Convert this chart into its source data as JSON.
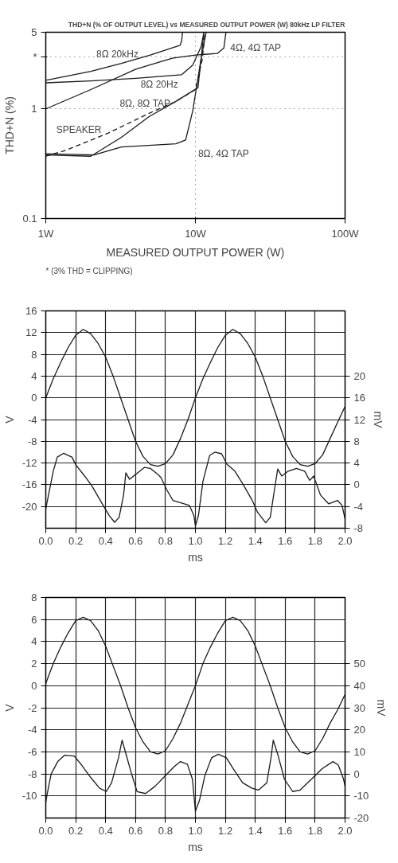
{
  "chart_data": [
    {
      "type": "line",
      "title": "THD+N (% OF OUTPUT LEVEL) vs MEASURED OUTPUT POWER (W) 80kHz LP FILTER",
      "xlabel": "MEASURED OUTPUT POWER (W)",
      "ylabel": "THD+N (%)",
      "log": "xy",
      "grid": true,
      "xlim": [
        1,
        100
      ],
      "ylim": [
        0.1,
        5
      ],
      "xticks": [
        {
          "value": 1,
          "label": "1W"
        },
        {
          "value": 10,
          "label": "10W"
        },
        {
          "value": 100,
          "label": "100W"
        }
      ],
      "yticks": [
        0.1,
        1,
        {
          "value": 3,
          "label": "*"
        },
        5
      ],
      "annotations": [
        "* (3% THD = CLIPPING)"
      ],
      "series": [
        {
          "name": "8Ω 20kHz",
          "color": "#1a1a1a",
          "x": [
            1,
            2,
            3.2,
            5,
            7.9,
            8.1,
            8.2
          ],
          "values": [
            1.82,
            2.2,
            2.6,
            3.1,
            3.8,
            4.2,
            5
          ]
        },
        {
          "name": "8Ω 20Hz",
          "color": "#1a1a1a",
          "x": [
            1,
            2,
            4,
            8.1,
            9.6,
            10.9,
            11.4
          ],
          "values": [
            1.73,
            1.8,
            1.9,
            2.05,
            2.51,
            3.68,
            5
          ]
        },
        {
          "name": "4Ω, 4Ω TAP",
          "color": "#1a1a1a",
          "x": [
            1,
            2,
            4,
            7,
            10,
            14,
            15.5,
            16
          ],
          "values": [
            1.0,
            1.5,
            2.3,
            2.9,
            3.1,
            3.2,
            3.6,
            5
          ]
        },
        {
          "name": "8Ω, 8Ω TAP",
          "color": "#1a1a1a",
          "x": [
            1,
            2,
            3.2,
            4.9,
            7.4,
            10.4,
            11.4
          ],
          "values": [
            0.38,
            0.37,
            0.55,
            0.85,
            1.17,
            1.56,
            5
          ]
        },
        {
          "name": "SPEAKER",
          "color": "#1a1a1a",
          "line_style": "dashed",
          "x": [
            1,
            1.37,
            2.6,
            4.9,
            7.4,
            10,
            11.1,
            11.6
          ],
          "values": [
            0.37,
            0.42,
            0.6,
            0.91,
            1.17,
            1.5,
            2.8,
            5
          ]
        },
        {
          "name": "8Ω, 4Ω TAP",
          "color": "#1a1a1a",
          "x": [
            1,
            2.1,
            3.2,
            7.4,
            8.6,
            9.6,
            10.9,
            11.8
          ],
          "values": [
            0.39,
            0.38,
            0.45,
            0.48,
            0.52,
            0.96,
            2.85,
            5
          ]
        }
      ]
    },
    {
      "type": "line",
      "xlabel": "ms",
      "ylabel": "V",
      "y2label": "mV",
      "grid": true,
      "xlim": [
        0,
        2
      ],
      "ylim": [
        -24,
        16
      ],
      "y2lim": [
        -8,
        32
      ],
      "xticks": [
        {
          "value": 0,
          "label": "0.0"
        },
        0.2,
        0.4,
        0.6,
        0.8,
        {
          "value": 1,
          "label": "1.0"
        },
        1.2,
        1.4,
        1.6,
        1.8,
        {
          "value": 2,
          "label": "2.0"
        }
      ],
      "yticks": [
        -20,
        -16,
        -12,
        -8,
        -4,
        0,
        4,
        8,
        12,
        16
      ],
      "y2ticks": [
        -8,
        -4,
        0,
        4,
        8,
        12,
        16,
        20
      ],
      "series": [
        {
          "color": "#1a1a1a",
          "x": [
            0,
            0.05,
            0.1,
            0.15,
            0.2,
            0.25,
            0.3,
            0.35,
            0.4,
            0.45,
            0.5,
            0.55,
            0.6,
            0.65,
            0.7,
            0.75,
            0.8,
            0.85,
            0.9,
            0.95,
            1.0,
            1.05,
            1.1,
            1.15,
            1.2,
            1.25,
            1.3,
            1.35,
            1.4,
            1.45,
            1.5,
            1.55,
            1.6,
            1.65,
            1.7,
            1.75,
            1.8,
            1.85,
            1.9,
            1.95,
            2.0
          ],
          "values": [
            0,
            3.5,
            6.5,
            9.3,
            11.5,
            12.6,
            11.8,
            10,
            7.5,
            4,
            0,
            -4,
            -8,
            -10.8,
            -12.3,
            -12.6,
            -12.1,
            -10.5,
            -7.5,
            -4,
            0,
            3.5,
            6.5,
            9.3,
            11.5,
            12.6,
            11.8,
            10,
            7.5,
            4,
            0,
            -4,
            -8,
            -10.8,
            -12.3,
            -12.6,
            -12.1,
            -10.5,
            -7.5,
            -4.5,
            -1.6
          ]
        },
        {
          "color": "#1a1a1a",
          "axis": "y2",
          "x": [
            0,
            0.014,
            0.05,
            0.077,
            0.12,
            0.15,
            0.175,
            0.2,
            0.26,
            0.31,
            0.35,
            0.39,
            0.425,
            0.46,
            0.49,
            0.52,
            0.535,
            0.56,
            0.6,
            0.66,
            0.7,
            0.75,
            0.77,
            0.81,
            0.85,
            0.925,
            0.96,
            0.99,
            1.0,
            1.02,
            1.05,
            1.095,
            1.13,
            1.175,
            1.21,
            1.264,
            1.32,
            1.38,
            1.416,
            1.47,
            1.5,
            1.53,
            1.55,
            1.577,
            1.62,
            1.675,
            1.73,
            1.764,
            1.79,
            1.836,
            1.89,
            1.95,
            1.98,
            2.0
          ],
          "values": [
            -4.4,
            -2.5,
            2.5,
            5.1,
            5.8,
            5.4,
            5.1,
            3.7,
            1.6,
            -0.3,
            -2.2,
            -4.1,
            -5.7,
            -6.9,
            -6,
            -1.9,
            2.2,
            1,
            1.9,
            3.2,
            3.0,
            1.9,
            1.3,
            -1,
            -2.9,
            -3.5,
            -3.8,
            -5.7,
            -7.6,
            -5.7,
            0.6,
            5.4,
            6,
            5.7,
            3.8,
            2.5,
            0,
            -2.9,
            -5.1,
            -7,
            -6,
            -0.6,
            2.9,
            1.6,
            2.5,
            3.0,
            2.5,
            0.8,
            1.6,
            -1.9,
            -3.5,
            -2.9,
            -3.8,
            -6.3
          ]
        }
      ]
    },
    {
      "type": "line",
      "xlabel": "ms",
      "ylabel": "V",
      "y2label": "mV",
      "grid": true,
      "xlim": [
        0,
        2
      ],
      "ylim": [
        -12,
        8
      ],
      "y2lim": [
        -20,
        80
      ],
      "xticks": [
        {
          "value": 0,
          "label": "0.0"
        },
        0.2,
        0.4,
        0.6,
        0.8,
        {
          "value": 1,
          "label": "1.0"
        },
        1.2,
        1.4,
        1.6,
        1.8,
        {
          "value": 2,
          "label": "2.0"
        }
      ],
      "yticks": [
        -10,
        -8,
        -6,
        -4,
        -2,
        0,
        2,
        4,
        6,
        8
      ],
      "y2ticks": [
        -20,
        -10,
        0,
        10,
        20,
        30,
        40,
        50
      ],
      "series": [
        {
          "color": "#1a1a1a",
          "x": [
            0,
            0.05,
            0.1,
            0.15,
            0.2,
            0.25,
            0.3,
            0.35,
            0.4,
            0.45,
            0.5,
            0.55,
            0.6,
            0.65,
            0.7,
            0.75,
            0.8,
            0.85,
            0.9,
            0.95,
            1.0,
            1.05,
            1.1,
            1.15,
            1.2,
            1.25,
            1.3,
            1.35,
            1.4,
            1.45,
            1.5,
            1.55,
            1.6,
            1.65,
            1.7,
            1.75,
            1.8,
            1.85,
            1.9,
            1.95,
            2.0
          ],
          "values": [
            0.2,
            2,
            3.5,
            4.8,
            5.9,
            6.2,
            5.9,
            5,
            3.6,
            1.8,
            0,
            -2,
            -3.8,
            -5.1,
            -6,
            -6.2,
            -5.9,
            -4.8,
            -3.4,
            -1.7,
            0,
            2,
            3.5,
            4.8,
            5.9,
            6.2,
            5.9,
            5,
            3.6,
            1.8,
            0,
            -2,
            -3.8,
            -5.1,
            -6,
            -6.2,
            -5.9,
            -4.8,
            -3.4,
            -2.2,
            -0.8
          ]
        },
        {
          "color": "#1a1a1a",
          "axis": "y2",
          "x": [
            0,
            0.01,
            0.036,
            0.08,
            0.126,
            0.19,
            0.24,
            0.3,
            0.36,
            0.405,
            0.44,
            0.486,
            0.51,
            0.53,
            0.57,
            0.61,
            0.667,
            0.73,
            0.8,
            0.856,
            0.9,
            0.946,
            0.98,
            1.0,
            1.027,
            1.063,
            1.108,
            1.153,
            1.207,
            1.252,
            1.315,
            1.378,
            1.423,
            1.477,
            1.505,
            1.52,
            1.55,
            1.595,
            1.65,
            1.7,
            1.775,
            1.847,
            1.919,
            1.955,
            1.99,
            2.0
          ],
          "values": [
            -12.9,
            -8.9,
            0,
            5.6,
            8.5,
            8.1,
            4,
            -1.6,
            -6.5,
            -8,
            -4,
            7.3,
            15.3,
            10.5,
            0.8,
            -8,
            -8.9,
            -5.6,
            -0.8,
            3.2,
            5.6,
            4.4,
            -2.4,
            -16.9,
            -12,
            -0.8,
            7.3,
            8.9,
            7.3,
            2.4,
            -4,
            -6.5,
            -7.3,
            -4,
            7.3,
            15.3,
            8.9,
            -2.4,
            -8,
            -7.3,
            -2.4,
            2.4,
            5.6,
            4,
            -2.4,
            -5.6
          ]
        }
      ]
    }
  ]
}
